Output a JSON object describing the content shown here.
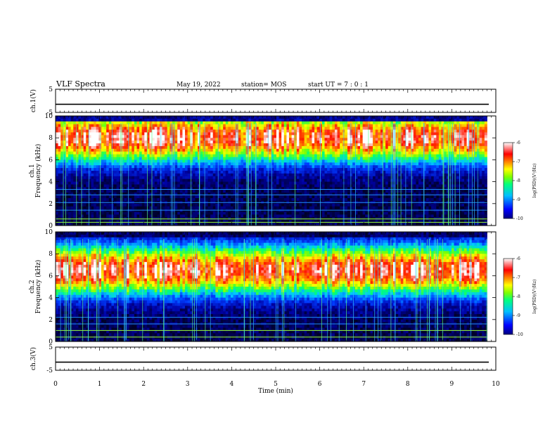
{
  "header": {
    "title": "VLF Spectra",
    "date": "May 19, 2022",
    "station": "station= MOS",
    "start_ut": "start  UT =   7 : 0  : 1"
  },
  "chart_data": [
    {
      "type": "line",
      "name": "ch1-voltage",
      "ylabel": "ch.1(V)",
      "ylim": [
        -5,
        5
      ],
      "yticks": [
        "5",
        "-5"
      ],
      "xlim": [
        0,
        10
      ],
      "level": -1.5
    },
    {
      "type": "heatmap",
      "name": "ch1-spectrogram",
      "ylabel": "ch.1\nFrequency (kHz)",
      "ylim": [
        0,
        10
      ],
      "yticks": [
        "0",
        "2",
        "4",
        "6",
        "8",
        "10"
      ],
      "xlim": [
        0,
        10
      ],
      "data_end_min": 9.8,
      "band_peak_khz": 8.0,
      "colorbar": {
        "label": "log(PSD)(V²/Hz)",
        "range": [
          -10,
          -6
        ],
        "ticks": [
          "-6",
          "-7",
          "-8",
          "-9",
          "-10"
        ]
      }
    },
    {
      "type": "heatmap",
      "name": "ch2-spectrogram",
      "ylabel": "ch.2\nFrequency (kHz)",
      "ylim": [
        0,
        10
      ],
      "yticks": [
        "0",
        "2",
        "4",
        "6",
        "8",
        "10"
      ],
      "xlim": [
        0,
        10
      ],
      "data_end_min": 9.8,
      "band_peak_khz": 6.5,
      "colorbar": {
        "label": "log(PSD)(V²/Hz)",
        "range": [
          -10,
          -6
        ],
        "ticks": [
          "-6",
          "-7",
          "-8",
          "-9",
          "-10"
        ]
      }
    },
    {
      "type": "line",
      "name": "ch3-voltage",
      "ylabel": "ch.3(V)",
      "ylim": [
        -5,
        5
      ],
      "yticks": [
        "5",
        "-5"
      ],
      "xlim": [
        0,
        10
      ],
      "level": -1.5,
      "xlabel": "Time (min)",
      "xticks": [
        "0",
        "1",
        "2",
        "3",
        "4",
        "5",
        "6",
        "7",
        "8",
        "9",
        "10"
      ]
    }
  ],
  "colormap": [
    "#00008b",
    "#0000ff",
    "#00bfff",
    "#00ff7f",
    "#7fff00",
    "#ffff00",
    "#ff7f00",
    "#ff0000",
    "#ffffff"
  ]
}
